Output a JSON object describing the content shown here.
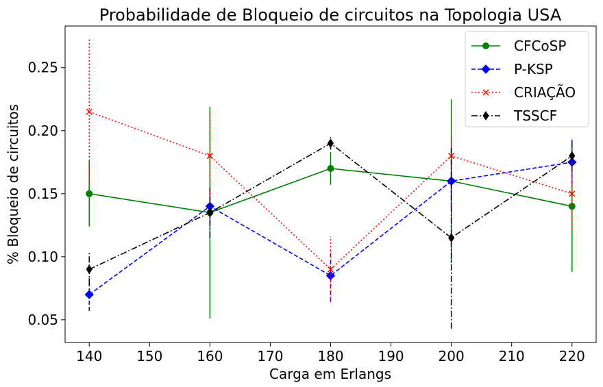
{
  "chart_data": {
    "type": "line",
    "title": "Probabilidade de Bloqueio de circuitos na Topologia USA",
    "xlabel": "Carga em Erlangs",
    "ylabel": "% Bloqueio de circuitos",
    "x": [
      140,
      160,
      180,
      200,
      220
    ],
    "xlim": [
      136,
      224
    ],
    "ylim": [
      0.032,
      0.283
    ],
    "xticks": [
      140,
      150,
      160,
      170,
      180,
      190,
      200,
      210,
      220
    ],
    "yticks": [
      0.05,
      0.1,
      0.15,
      0.2,
      0.25
    ],
    "xtick_labels": [
      "140",
      "150",
      "160",
      "170",
      "180",
      "190",
      "200",
      "210",
      "220"
    ],
    "ytick_labels": [
      "0.05",
      "0.10",
      "0.15",
      "0.20",
      "0.25"
    ],
    "grid": false,
    "legend_position": "top-right",
    "series": [
      {
        "name": "CFCoSP",
        "color": "#008000",
        "linestyle": "solid",
        "marker": "circle",
        "values": [
          0.15,
          0.135,
          0.17,
          0.16,
          0.14
        ],
        "errors": [
          0.026,
          0.084,
          0.013,
          0.065,
          0.052
        ]
      },
      {
        "name": "P-KSP",
        "color": "#0000ff",
        "linestyle": "dashed",
        "marker": "diamond",
        "values": [
          0.07,
          0.14,
          0.085,
          0.16,
          0.175
        ],
        "errors": [
          0.013,
          0.015,
          0.02,
          0.02,
          0.018
        ]
      },
      {
        "name": "CRIAÇÃO",
        "color": "#ff0000",
        "linestyle": "dotted",
        "marker": "x",
        "values": [
          0.215,
          0.18,
          0.09,
          0.18,
          0.15
        ],
        "errors": [
          0.058,
          0.035,
          0.026,
          0.014,
          0.028
        ]
      },
      {
        "name": "TSSCF",
        "color": "#000000",
        "linestyle": "dashdot",
        "marker": "thin-diamond",
        "values": [
          0.09,
          0.135,
          0.19,
          0.115,
          0.18
        ],
        "errors": [
          0.013,
          0.02,
          0.005,
          0.072,
          0.012
        ]
      }
    ]
  }
}
